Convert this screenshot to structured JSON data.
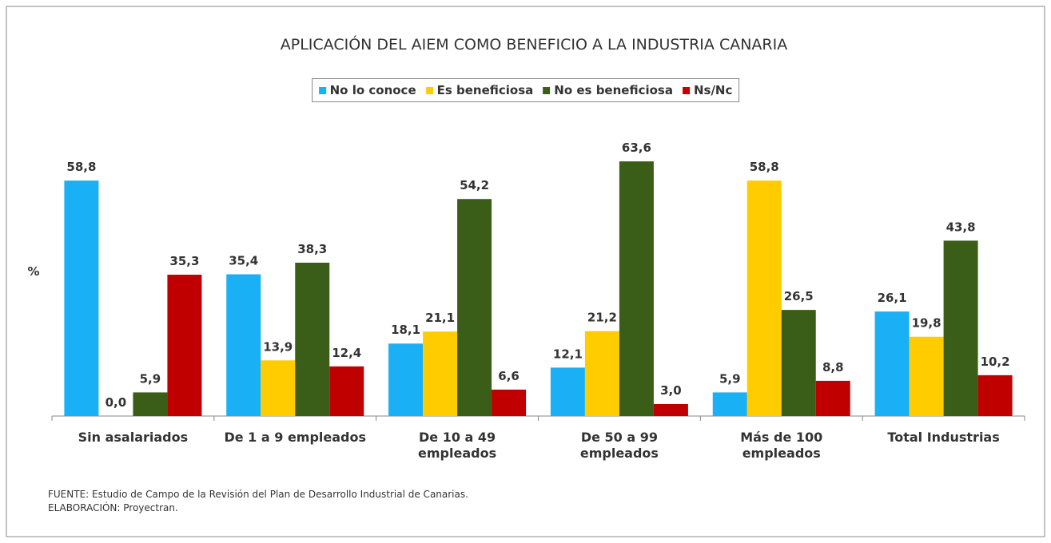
{
  "chart_data": {
    "type": "bar",
    "title": "APLICACIÓN DEL AIEM COMO BENEFICIO A LA INDUSTRIA CANARIA",
    "ylabel": "%",
    "categories": [
      "Sin asalariados",
      "De 1 a 9 empleados",
      "De 10 a 49 empleados",
      "De 50 a 99 empleados",
      "Más de 100 empleados",
      "Total Industrias"
    ],
    "series": [
      {
        "name": "No lo conoce",
        "color": "#1ab0f5",
        "values": [
          58.8,
          35.4,
          18.1,
          12.1,
          5.9,
          26.1
        ],
        "value_labels": [
          "58,8",
          "35,4",
          "18,1",
          "12,1",
          "5,9",
          "26,1"
        ]
      },
      {
        "name": "Es beneficiosa",
        "color": "#ffcc00",
        "values": [
          0.0,
          13.9,
          21.1,
          21.2,
          58.8,
          19.8
        ],
        "value_labels": [
          "0,0",
          "13,9",
          "21,1",
          "21,2",
          "58,8",
          "19,8"
        ]
      },
      {
        "name": "No es beneficiosa",
        "color": "#3a5e17",
        "values": [
          5.9,
          38.3,
          54.2,
          63.6,
          26.5,
          43.8
        ],
        "value_labels": [
          "5,9",
          "38,3",
          "54,2",
          "63,6",
          "26,5",
          "43,8"
        ]
      },
      {
        "name": "Ns/Nc",
        "color": "#c00000",
        "values": [
          35.3,
          12.4,
          6.6,
          3.0,
          8.8,
          10.2
        ],
        "value_labels": [
          "35,3",
          "12,4",
          "6,6",
          "3,0",
          "8,8",
          "10,2"
        ]
      }
    ],
    "ylim": [
      0,
      70
    ],
    "legend": "top",
    "notes": [
      "FUENTE: Estudio de Campo de la Revisión del Plan de Desarrollo Industrial de Canarias.",
      "ELABORACIÓN: Proyectran."
    ]
  }
}
